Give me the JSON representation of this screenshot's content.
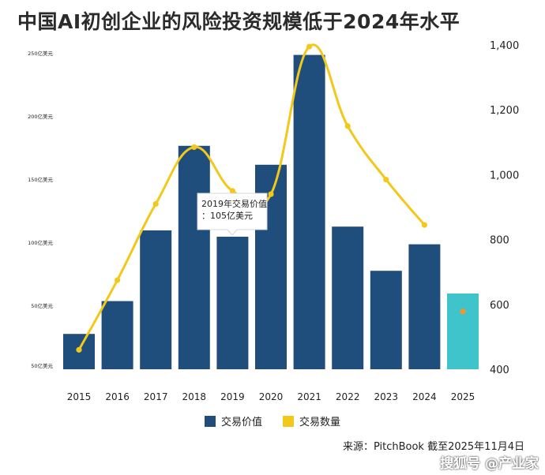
{
  "title": "中国AI初创企业的风险投资规模低于2024年水平",
  "source_text": "来源：PitchBook    截至2025年11月4日",
  "watermark_text": "搜狐号 @产业家",
  "colors": {
    "bar": "#1f4e7d",
    "bar_latest": "#40c4cc",
    "line": "#f2c81a",
    "dot_latest": "#f0962a"
  },
  "chart_data": {
    "type": "bar",
    "categories": [
      "2015",
      "2016",
      "2017",
      "2018",
      "2019",
      "2020",
      "2021",
      "2022",
      "2023",
      "2024",
      "2025"
    ],
    "series": [
      {
        "name": "交易价值",
        "axis": "left",
        "values": [
          28,
          54,
          110,
          177,
          105,
          162,
          249,
          113,
          78,
          99,
          60
        ]
      },
      {
        "name": "交易数量",
        "axis": "right",
        "type": "line",
        "values": [
          460,
          675,
          910,
          1085,
          950,
          940,
          1395,
          1150,
          985,
          845,
          578
        ]
      }
    ],
    "left_axis": {
      "ylim": [
        0,
        250
      ],
      "ticks": [
        {
          "value": 50,
          "label": "50亿美元"
        },
        {
          "value": 100,
          "label": "100亿美元"
        },
        {
          "value": 150,
          "label": "150亿美元"
        },
        {
          "value": 200,
          "label": "200亿美元"
        },
        {
          "value": 250,
          "label": "250亿美元"
        }
      ],
      "bottom_label": "50亿美元"
    },
    "right_axis": {
      "ylim": [
        400,
        1400
      ],
      "ticks": [
        {
          "value": 400,
          "label": "400"
        },
        {
          "value": 600,
          "label": "600"
        },
        {
          "value": 800,
          "label": "800"
        },
        {
          "value": 1000,
          "label": "1,000"
        },
        {
          "value": 1200,
          "label": "1,200"
        },
        {
          "value": 1400,
          "label": "1,400"
        }
      ]
    },
    "legend": [
      "交易价值",
      "交易数量"
    ],
    "legend_position": "bottom",
    "tooltip": {
      "category": "2019",
      "line1": "2019年交易价值",
      "line2": "：105亿美元"
    },
    "grid": false
  }
}
